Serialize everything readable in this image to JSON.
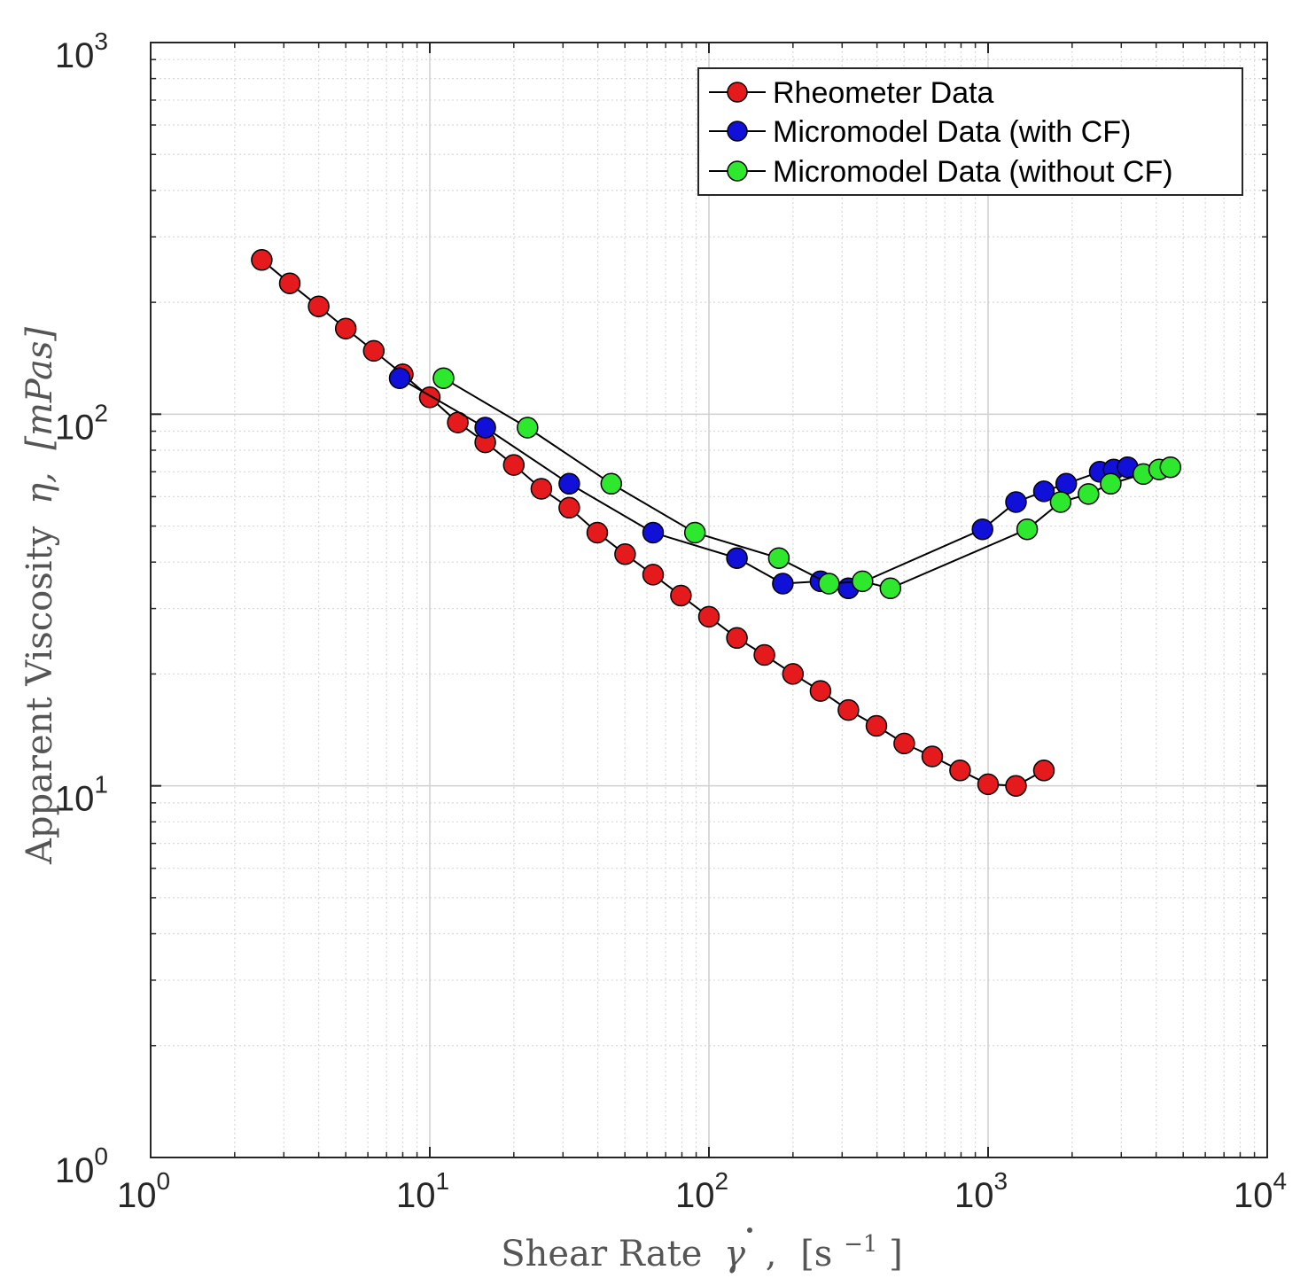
{
  "chart_data": {
    "type": "line",
    "xscale": "log",
    "yscale": "log",
    "xlim": [
      1,
      10000
    ],
    "ylim": [
      1,
      1000
    ],
    "grid": true,
    "legend_position": "top-right",
    "xlabel": {
      "text": "Shear Rate",
      "symbol": "γ",
      "sep": ",",
      "unit_open": "[s",
      "unit_exp": "−1",
      "unit_close": "]"
    },
    "ylabel": {
      "text": "Apparent Viscosity",
      "symbol": "η,",
      "unit": "[mPas]"
    },
    "xticks": [
      {
        "value": 1,
        "base": "10",
        "exp": "0"
      },
      {
        "value": 10,
        "base": "10",
        "exp": "1"
      },
      {
        "value": 100,
        "base": "10",
        "exp": "2"
      },
      {
        "value": 1000,
        "base": "10",
        "exp": "3"
      },
      {
        "value": 10000,
        "base": "10",
        "exp": "4"
      }
    ],
    "yticks": [
      {
        "value": 1,
        "base": "10",
        "exp": "0"
      },
      {
        "value": 10,
        "base": "10",
        "exp": "1"
      },
      {
        "value": 100,
        "base": "10",
        "exp": "2"
      },
      {
        "value": 1000,
        "base": "10",
        "exp": "3"
      }
    ],
    "series": [
      {
        "name": "Rheometer Data",
        "color": "#e41a1c",
        "x": [
          2.5,
          3.15,
          4.0,
          5.0,
          6.3,
          8.0,
          10.0,
          12.6,
          15.8,
          20.0,
          25.1,
          31.6,
          39.8,
          50.1,
          63.1,
          79.4,
          100,
          126,
          158,
          200,
          251,
          316,
          398,
          501,
          631,
          794,
          1000,
          1259,
          1585
        ],
        "y": [
          260,
          225,
          195,
          170,
          148,
          128,
          111,
          95,
          84,
          73,
          63,
          56,
          48,
          42,
          37,
          32.5,
          28.5,
          25,
          22.5,
          20,
          18,
          16,
          14.5,
          13,
          12,
          11,
          10.1,
          10.0,
          11
        ]
      },
      {
        "name": "Micromodel Data (with CF)",
        "color": "#1010d8",
        "x": [
          7.8,
          15.8,
          31.6,
          63.1,
          126,
          184,
          251,
          316,
          955,
          1259,
          1585,
          1905,
          2512,
          2818,
          3162
        ],
        "y": [
          125,
          92,
          65,
          48,
          41,
          35,
          35.5,
          34,
          49,
          58,
          62,
          65,
          70,
          71,
          72
        ]
      },
      {
        "name": "Micromodel Data (without CF)",
        "color": "#2ee82e",
        "x": [
          11.2,
          22.4,
          44.7,
          89.1,
          178,
          269,
          355,
          447,
          1380,
          1820,
          2290,
          2750,
          3600,
          4100,
          4500
        ],
        "y": [
          125,
          92,
          65,
          48,
          41,
          35,
          35.5,
          34,
          49,
          58,
          61,
          65,
          69,
          71,
          72
        ]
      }
    ]
  }
}
